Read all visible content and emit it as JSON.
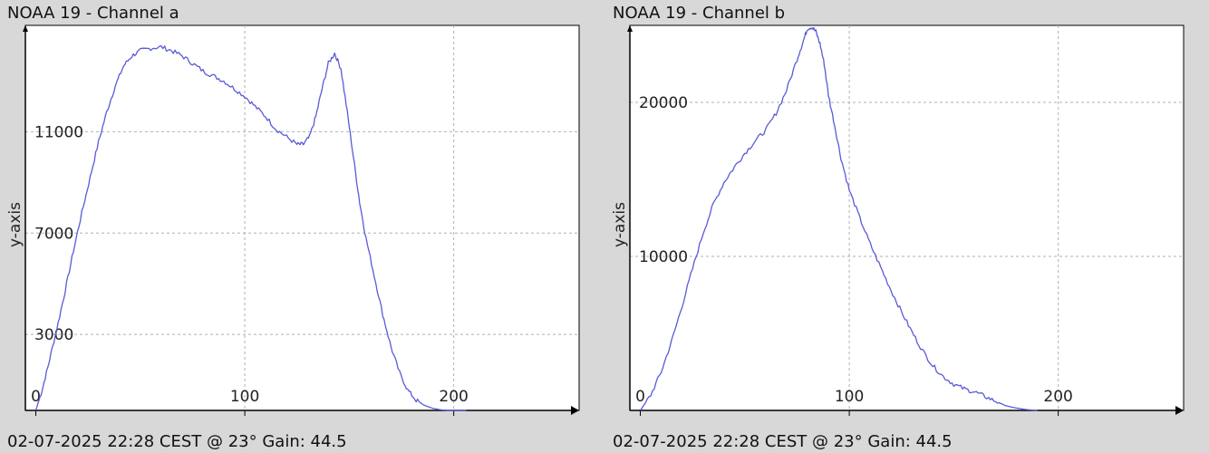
{
  "chart_data": [
    {
      "type": "line",
      "title": "NOAA 19 - Channel a",
      "footer": "02-07-2025 22:28 CEST @ 23° Gain: 44.5",
      "ylabel": "y-axis",
      "xlim": [
        -5,
        260
      ],
      "ylim": [
        0,
        15200
      ],
      "xticks": [
        0,
        100,
        200
      ],
      "yticks": [
        3000,
        7000,
        11000
      ],
      "grid": true,
      "color": "#5a5ad6",
      "series": [
        {
          "x": [
            0,
            3,
            6,
            10,
            14,
            18,
            22,
            26,
            30,
            34,
            38,
            42,
            46,
            50,
            55,
            60,
            65,
            70,
            75,
            80,
            85,
            90,
            95,
            100,
            105,
            110,
            115,
            120,
            125,
            128,
            131,
            134,
            137,
            140,
            143,
            146,
            149,
            152,
            155,
            158,
            162,
            166,
            170,
            174,
            178,
            182,
            186,
            190,
            194,
            198,
            202,
            206
          ],
          "y": [
            0,
            800,
            1800,
            3200,
            4700,
            6300,
            7800,
            9200,
            10600,
            11800,
            12800,
            13600,
            14000,
            14200,
            14300,
            14350,
            14200,
            14000,
            13700,
            13400,
            13200,
            13000,
            12700,
            12400,
            12000,
            11600,
            11100,
            10800,
            10500,
            10500,
            10800,
            11600,
            12700,
            13700,
            14100,
            13500,
            11800,
            10000,
            8200,
            6800,
            5300,
            3800,
            2500,
            1500,
            800,
            400,
            200,
            80,
            20,
            0,
            0,
            0
          ]
        }
      ]
    },
    {
      "type": "line",
      "title": "NOAA 19 - Channel b",
      "footer": "02-07-2025 22:28 CEST @ 23° Gain: 44.5",
      "ylabel": "y-axis",
      "xlim": [
        -5,
        260
      ],
      "ylim": [
        0,
        25000
      ],
      "xticks": [
        0,
        100,
        200
      ],
      "yticks": [
        10000,
        20000
      ],
      "grid": true,
      "color": "#5a5ad6",
      "series": [
        {
          "x": [
            0,
            5,
            10,
            15,
            20,
            25,
            30,
            35,
            40,
            45,
            50,
            55,
            60,
            65,
            70,
            75,
            78,
            80,
            82,
            84,
            86,
            88,
            90,
            93,
            96,
            100,
            105,
            110,
            115,
            120,
            125,
            130,
            135,
            140,
            145,
            150,
            155,
            160,
            165,
            170,
            175,
            180,
            185,
            190
          ],
          "y": [
            0,
            1000,
            2500,
            4500,
            6800,
            9200,
            11500,
            13400,
            14800,
            15800,
            16700,
            17500,
            18200,
            19300,
            20800,
            22800,
            24000,
            24800,
            24900,
            24600,
            23800,
            22500,
            20500,
            18500,
            16400,
            14300,
            12500,
            10800,
            9300,
            7800,
            6400,
            5100,
            3900,
            2900,
            2200,
            1700,
            1400,
            1200,
            900,
            600,
            300,
            150,
            50,
            0
          ]
        }
      ]
    }
  ]
}
